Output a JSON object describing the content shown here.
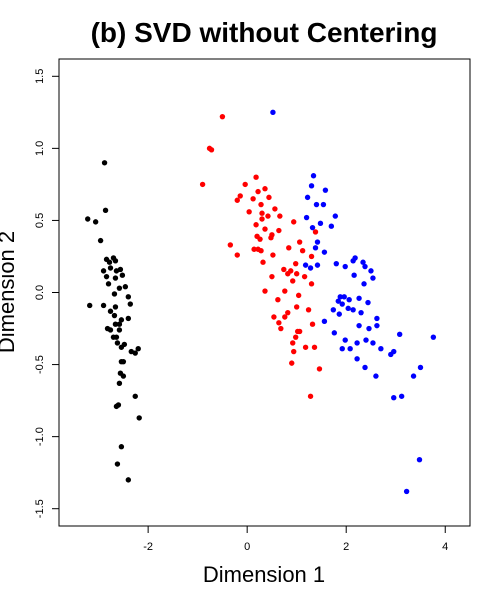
{
  "chart_data": {
    "type": "scatter",
    "title": "(b) SVD without Centering",
    "xlabel": "Dimension 1",
    "ylabel": "Dimension 2",
    "xlim": [
      -3.8,
      4.5
    ],
    "ylim": [
      -1.62,
      1.62
    ],
    "xticks": [
      -2,
      0,
      2,
      4
    ],
    "yticks": [
      -1.5,
      -1.0,
      -0.5,
      0.0,
      0.5,
      1.0,
      1.5
    ],
    "xtick_labels": [
      "-2",
      "0",
      "2",
      "4"
    ],
    "ytick_labels": [
      "-1.5",
      "-1.0",
      "-0.5",
      "0.0",
      "0.5",
      "1.0",
      "1.5"
    ],
    "grid": false,
    "series": [
      {
        "color": "#000000",
        "points": [
          [
            -2.88,
            0.9
          ],
          [
            -3.22,
            0.51
          ],
          [
            -3.06,
            0.49
          ],
          [
            -2.86,
            0.57
          ],
          [
            -2.96,
            0.36
          ],
          [
            -2.84,
            0.23
          ],
          [
            -2.78,
            0.21
          ],
          [
            -2.7,
            0.24
          ],
          [
            -2.66,
            0.22
          ],
          [
            -2.76,
            0.17
          ],
          [
            -2.9,
            0.15
          ],
          [
            -2.64,
            0.15
          ],
          [
            -2.56,
            0.16
          ],
          [
            -2.84,
            0.11
          ],
          [
            -2.66,
            0.1
          ],
          [
            -2.52,
            0.12
          ],
          [
            -2.8,
            0.06
          ],
          [
            -2.46,
            0.04
          ],
          [
            -2.58,
            0.03
          ],
          [
            -2.68,
            -0.01
          ],
          [
            -2.4,
            -0.03
          ],
          [
            -2.36,
            -0.08
          ],
          [
            -3.18,
            -0.09
          ],
          [
            -2.9,
            -0.09
          ],
          [
            -2.66,
            -0.1
          ],
          [
            -2.76,
            -0.13
          ],
          [
            -2.68,
            -0.16
          ],
          [
            -2.54,
            -0.19
          ],
          [
            -2.4,
            -0.18
          ],
          [
            -2.66,
            -0.22
          ],
          [
            -2.58,
            -0.22
          ],
          [
            -2.82,
            -0.25
          ],
          [
            -2.76,
            -0.26
          ],
          [
            -2.58,
            -0.26
          ],
          [
            -2.64,
            -0.31
          ],
          [
            -2.7,
            -0.31
          ],
          [
            -2.62,
            -0.35
          ],
          [
            -2.48,
            -0.36
          ],
          [
            -2.54,
            -0.38
          ],
          [
            -2.2,
            -0.39
          ],
          [
            -2.34,
            -0.41
          ],
          [
            -2.26,
            -0.42
          ],
          [
            -2.54,
            -0.48
          ],
          [
            -2.5,
            -0.48
          ],
          [
            -2.56,
            -0.56
          ],
          [
            -2.5,
            -0.58
          ],
          [
            -2.58,
            -0.63
          ],
          [
            -2.26,
            -0.72
          ],
          [
            -2.6,
            -0.78
          ],
          [
            -2.64,
            -0.79
          ],
          [
            -2.18,
            -0.87
          ],
          [
            -2.54,
            -1.07
          ],
          [
            -2.62,
            -1.19
          ],
          [
            -2.4,
            -1.3
          ]
        ]
      },
      {
        "color": "#ff0000",
        "points": [
          [
            -0.5,
            1.22
          ],
          [
            -0.76,
            1.0
          ],
          [
            -0.72,
            0.99
          ],
          [
            -0.9,
            0.75
          ],
          [
            0.18,
            0.8
          ],
          [
            -0.04,
            0.75
          ],
          [
            0.22,
            0.7
          ],
          [
            0.36,
            0.72
          ],
          [
            -0.14,
            0.67
          ],
          [
            0.44,
            0.66
          ],
          [
            -0.2,
            0.64
          ],
          [
            0.12,
            0.65
          ],
          [
            0.28,
            0.61
          ],
          [
            0.04,
            0.56
          ],
          [
            0.56,
            0.58
          ],
          [
            0.3,
            0.55
          ],
          [
            0.42,
            0.53
          ],
          [
            0.66,
            0.53
          ],
          [
            0.3,
            0.51
          ],
          [
            0.18,
            0.47
          ],
          [
            0.36,
            0.44
          ],
          [
            0.94,
            0.49
          ],
          [
            0.64,
            0.43
          ],
          [
            0.5,
            0.4
          ],
          [
            1.38,
            0.42
          ],
          [
            0.2,
            0.39
          ],
          [
            0.26,
            0.37
          ],
          [
            0.48,
            0.38
          ],
          [
            1.06,
            0.35
          ],
          [
            -0.34,
            0.33
          ],
          [
            0.14,
            0.3
          ],
          [
            0.22,
            0.3
          ],
          [
            0.28,
            0.29
          ],
          [
            0.84,
            0.31
          ],
          [
            1.12,
            0.29
          ],
          [
            0.52,
            0.26
          ],
          [
            -0.2,
            0.26
          ],
          [
            1.3,
            0.25
          ],
          [
            0.32,
            0.21
          ],
          [
            0.98,
            0.2
          ],
          [
            0.74,
            0.16
          ],
          [
            0.88,
            0.15
          ],
          [
            0.82,
            0.13
          ],
          [
            0.5,
            0.11
          ],
          [
            1.0,
            0.13
          ],
          [
            1.16,
            0.11
          ],
          [
            0.92,
            0.08
          ],
          [
            0.36,
            0.01
          ],
          [
            1.3,
            0.06
          ],
          [
            0.76,
            0.01
          ],
          [
            1.04,
            -0.02
          ],
          [
            0.62,
            -0.05
          ],
          [
            1.0,
            -0.1
          ],
          [
            1.24,
            -0.12
          ],
          [
            0.54,
            -0.17
          ],
          [
            0.76,
            -0.17
          ],
          [
            0.82,
            -0.14
          ],
          [
            0.64,
            -0.21
          ],
          [
            0.68,
            -0.25
          ],
          [
            1.32,
            -0.22
          ],
          [
            1.02,
            -0.27
          ],
          [
            1.06,
            -0.27
          ],
          [
            0.98,
            -0.31
          ],
          [
            0.92,
            -0.35
          ],
          [
            0.94,
            -0.41
          ],
          [
            1.18,
            -0.38
          ],
          [
            1.36,
            -0.38
          ],
          [
            0.9,
            -0.49
          ],
          [
            1.46,
            -0.53
          ],
          [
            1.28,
            -0.72
          ]
        ]
      },
      {
        "color": "#0000ff",
        "points": [
          [
            0.52,
            1.25
          ],
          [
            1.34,
            0.81
          ],
          [
            1.3,
            0.74
          ],
          [
            1.58,
            0.71
          ],
          [
            1.22,
            0.66
          ],
          [
            1.4,
            0.61
          ],
          [
            1.54,
            0.61
          ],
          [
            1.78,
            0.53
          ],
          [
            1.2,
            0.52
          ],
          [
            1.48,
            0.48
          ],
          [
            1.32,
            0.45
          ],
          [
            1.7,
            0.46
          ],
          [
            1.42,
            0.35
          ],
          [
            1.38,
            0.31
          ],
          [
            1.56,
            0.28
          ],
          [
            2.18,
            0.24
          ],
          [
            2.14,
            0.22
          ],
          [
            2.34,
            0.21
          ],
          [
            2.38,
            0.18
          ],
          [
            1.8,
            0.2
          ],
          [
            1.98,
            0.18
          ],
          [
            1.18,
            0.19
          ],
          [
            1.28,
            0.17
          ],
          [
            1.42,
            0.19
          ],
          [
            2.5,
            0.15
          ],
          [
            2.16,
            0.12
          ],
          [
            2.54,
            0.1
          ],
          [
            2.36,
            0.06
          ],
          [
            1.88,
            -0.03
          ],
          [
            1.96,
            -0.03
          ],
          [
            2.06,
            -0.05
          ],
          [
            1.84,
            -0.06
          ],
          [
            2.26,
            -0.04
          ],
          [
            1.92,
            -0.08
          ],
          [
            2.44,
            -0.07
          ],
          [
            2.04,
            -0.11
          ],
          [
            2.14,
            -0.12
          ],
          [
            1.74,
            -0.12
          ],
          [
            2.3,
            -0.14
          ],
          [
            1.86,
            -0.15
          ],
          [
            2.62,
            -0.18
          ],
          [
            1.56,
            -0.2
          ],
          [
            2.26,
            -0.23
          ],
          [
            2.46,
            -0.25
          ],
          [
            2.62,
            -0.23
          ],
          [
            1.76,
            -0.28
          ],
          [
            1.98,
            -0.33
          ],
          [
            2.4,
            -0.33
          ],
          [
            2.22,
            -0.35
          ],
          [
            2.54,
            -0.35
          ],
          [
            3.08,
            -0.29
          ],
          [
            3.76,
            -0.31
          ],
          [
            1.92,
            -0.39
          ],
          [
            2.08,
            -0.39
          ],
          [
            2.7,
            -0.39
          ],
          [
            2.96,
            -0.41
          ],
          [
            2.9,
            -0.43
          ],
          [
            2.22,
            -0.46
          ],
          [
            2.38,
            -0.52
          ],
          [
            2.6,
            -0.58
          ],
          [
            3.5,
            -0.52
          ],
          [
            3.36,
            -0.58
          ],
          [
            2.96,
            -0.73
          ],
          [
            3.12,
            -0.72
          ],
          [
            3.48,
            -1.16
          ],
          [
            3.22,
            -1.38
          ]
        ]
      }
    ]
  }
}
